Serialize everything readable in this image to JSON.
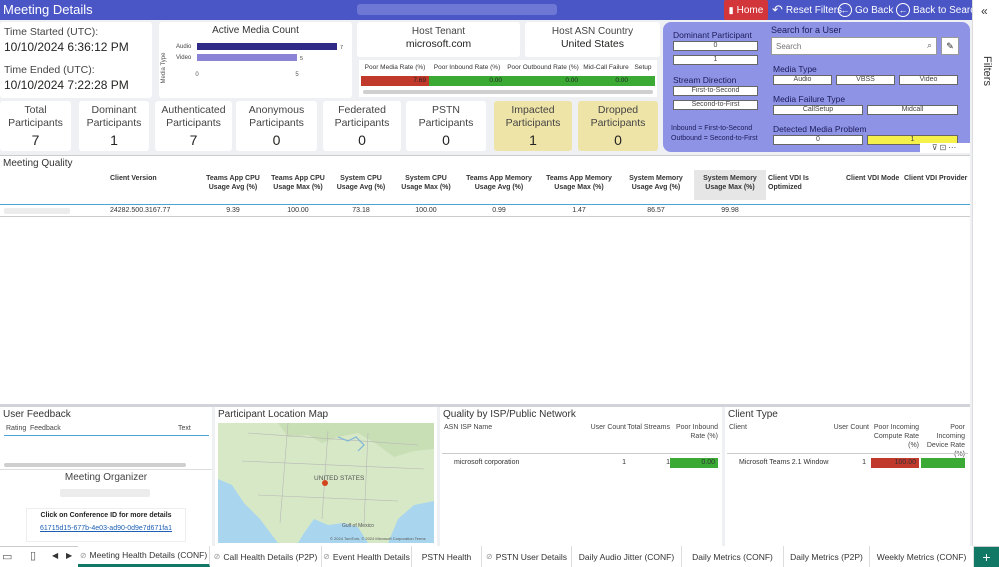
{
  "header": {
    "title": "Meeting Details",
    "home_label": "Home",
    "reset_label": "Reset Filters",
    "goback_label": "Go Back",
    "back_search_label": "Back to Search"
  },
  "times": {
    "started_label": "Time Started (UTC):",
    "started_value": "10/10/2024 6:36:12 PM",
    "ended_label": "Time Ended (UTC):",
    "ended_value": "10/10/2024 7:22:28 PM"
  },
  "active_media": {
    "title": "Active Media Count",
    "axis_title": "Media Type",
    "categories": [
      "Audio",
      "Video"
    ],
    "values": [
      7,
      5
    ],
    "xticks": [
      "0",
      "5"
    ],
    "bar_color": "#2e2a85",
    "bar_color2": "#8b83d6",
    "chart_data": {
      "type": "bar",
      "categories": [
        "Audio",
        "Video"
      ],
      "values": [
        7,
        5
      ],
      "title": "Active Media Count",
      "ylabel": "Media Type",
      "xlim": [
        0,
        7.5
      ]
    }
  },
  "host": {
    "tenant_label": "Host Tenant",
    "tenant_value": "microsoft.com",
    "asn_label": "Host ASN Country",
    "asn_value": "United States"
  },
  "rates": {
    "headers": [
      "Poor Media Rate (%)",
      "Poor Inbound Rate (%)",
      "Poor Outbound Rate (%)",
      "Mid-Call Failure",
      "Setup"
    ],
    "values": [
      "7.69",
      "0.00",
      "0.00",
      "0.00",
      ""
    ],
    "colors": [
      "#c0392b",
      "#3aaa35",
      "#3aaa35",
      "#3aaa35",
      "#3aaa35"
    ]
  },
  "filters": {
    "dominant_label": "Dominant Participant",
    "dominant_options": [
      "0",
      "1"
    ],
    "stream_label": "Stream Direction",
    "stream_options": [
      "First-to-Second",
      "Second-to-First"
    ],
    "stream_note1": "Inbound = First-to-Second",
    "stream_note2": "Outbound = Second-to-First",
    "search_label": "Search for a User",
    "search_placeholder": "Search",
    "media_type_label": "Media Type",
    "media_types": [
      "Audio",
      "VBSS",
      "Video"
    ],
    "failure_label": "Media Failure Type",
    "failure_types": [
      "CallSetup",
      "Midcall"
    ],
    "problem_label": "Detected Media Problem",
    "problem_options": [
      "0",
      "1"
    ]
  },
  "stats": [
    {
      "label": "Total Participants",
      "value": "7"
    },
    {
      "label": "Dominant Participants",
      "value": "1"
    },
    {
      "label": "Authenticated Participants",
      "value": "7"
    },
    {
      "label": "Anonymous Participants",
      "value": "0"
    },
    {
      "label": "Federated Participants",
      "value": "0"
    },
    {
      "label": "PSTN Participants",
      "value": "0"
    },
    {
      "label": "Impacted Participants",
      "value": "1"
    },
    {
      "label": "Dropped Participants",
      "value": "0"
    }
  ],
  "quality": {
    "title": "Meeting Quality",
    "headers": [
      "Client Version",
      "Teams App CPU Usage Avg (%)",
      "Teams App CPU Usage Max (%)",
      "System CPU Usage Avg (%)",
      "System CPU Usage Max (%)",
      "Teams App Memory Usage Avg (%)",
      "Teams App Memory Usage Max (%)",
      "System Memory Usage Avg (%)",
      "System Memory Usage Max (%)",
      "Client VDI Is Optimized",
      "Client VDI Mode",
      "Client VDI Provider"
    ],
    "row": [
      "24282.500.3167.77",
      "9.39",
      "100.00",
      "73.18",
      "100.00",
      "0.99",
      "1.47",
      "86.57",
      "99.98",
      "",
      "",
      ""
    ]
  },
  "feedback": {
    "title": "User Feedback",
    "col_rating": "Rating",
    "col_feedback": "Feedback",
    "col_text": "Text",
    "organizer_label": "Meeting Organizer",
    "conf_label": "Click on Conference ID for more details",
    "conf_id": "61715d15-677b-4e03-ad90-0d9e7d671fa1"
  },
  "map": {
    "title": "Participant Location Map",
    "label": "UNITED STATES",
    "gulf": "Gulf of Mexico",
    "copyright": "© 2024 TomTom, © 2024 Microsoft Corporation  Terms"
  },
  "isp": {
    "title": "Quality by ISP/Public Network",
    "headers": [
      "ASN ISP Name",
      "User Count",
      "Total Streams",
      "Poor Inbound Rate (%)"
    ],
    "row": [
      "microsoft corporation",
      "1",
      "1",
      "0.00"
    ]
  },
  "client": {
    "title": "Client Type",
    "headers": [
      "Client",
      "User Count",
      "Poor Incoming Compute Rate (%)",
      "Poor Incoming Device Rate (%)"
    ],
    "row": [
      "Microsoft Teams 2.1 Windows",
      "1",
      "100.00",
      ""
    ]
  },
  "side": {
    "filters_label": "Filters"
  },
  "tabs": [
    "Meeting Health Details (CONF)",
    "Call Health Details (P2P)",
    "Event Health Details",
    "PSTN Health",
    "PSTN User Details",
    "Daily Audio Jitter (CONF)",
    "Daily Metrics (CONF)",
    "Daily Metrics (P2P)",
    "Weekly Metrics (CONF)"
  ]
}
